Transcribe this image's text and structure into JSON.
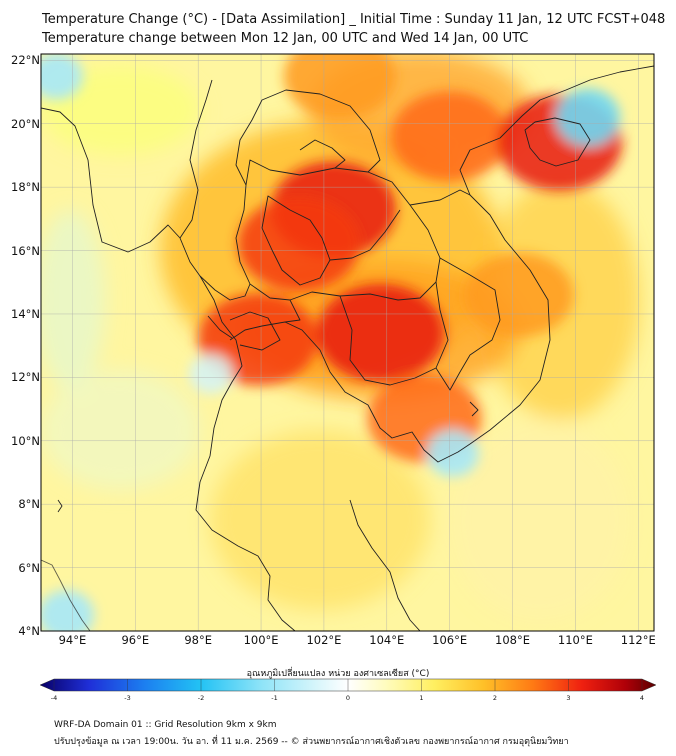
{
  "header": {
    "title_line1": "Temperature Change (°C) - [Data Assimilation] _ Initial Time : Sunday 11 Jan, 12 UTC FCST+048",
    "title_line2": "Temperature change between Mon 12 Jan, 00 UTC and Wed 14 Jan, 00 UTC"
  },
  "map": {
    "lat_labels": [
      "22°N",
      "20°N",
      "18°N",
      "16°N",
      "14°N",
      "12°N",
      "10°N",
      "8°N",
      "6°N",
      "4°N"
    ],
    "lon_labels": [
      "94°E",
      "96°E",
      "98°E",
      "100°E",
      "102°E",
      "104°E",
      "106°E",
      "108°E",
      "110°E",
      "112°E"
    ],
    "hotspots": [
      {
        "lon": 102.3,
        "lat": 17.3,
        "value": 3.0
      },
      {
        "lon": 103.8,
        "lat": 13.4,
        "value": 3.1
      },
      {
        "lon": 101.2,
        "lat": 16.2,
        "value": 2.9
      },
      {
        "lon": 99.9,
        "lat": 13.2,
        "value": 2.8
      },
      {
        "lon": 106.0,
        "lat": 19.6,
        "value": 2.7
      },
      {
        "lon": 109.5,
        "lat": 19.4,
        "value": 3.0
      },
      {
        "lon": 105.2,
        "lat": 10.7,
        "value": 2.6
      },
      {
        "lon": 102.5,
        "lat": 21.5,
        "value": 2.5
      },
      {
        "lon": 108.2,
        "lat": 14.6,
        "value": 2.4
      }
    ],
    "coldspots": [
      {
        "lon": 93.5,
        "lat": 21.5,
        "value": -0.6
      },
      {
        "lon": 110.4,
        "lat": 20.2,
        "value": -0.9
      },
      {
        "lon": 106.1,
        "lat": 9.6,
        "value": -0.6
      },
      {
        "lon": 93.8,
        "lat": 4.5,
        "value": -0.7
      },
      {
        "lon": 98.4,
        "lat": 12.1,
        "value": -0.4
      }
    ]
  },
  "colorbar": {
    "title": "อุณหภูมิเปลี่ยนแปลง หน่วย องศาเซลเซียส (°C)",
    "ticks": [
      "-4",
      "-3",
      "-2",
      "-1",
      "0",
      "1",
      "2",
      "3",
      "4"
    ],
    "min": -4,
    "max": 4
  },
  "footer": {
    "line1": "WRF-DA Domain 01 :: Grid Resolution 9km x 9km",
    "line2": "ปรับปรุงข้อมูล ณ เวลา 19:00น. วัน อา. ที่ 11 ม.ค. 2569 -- © ส่วนพยากรณ์อากาศเชิงตัวเลข กองพยากรณ์อากาศ กรมอุตุนิยมวิทยา"
  }
}
